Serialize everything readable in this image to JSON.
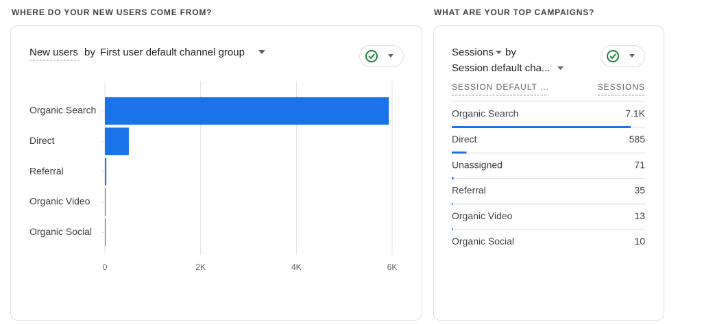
{
  "left_card": {
    "heading": "WHERE DO YOUR NEW USERS COME FROM?",
    "metric": "New users",
    "by": "by",
    "dimension": "First user default channel group"
  },
  "chart_data": {
    "type": "bar",
    "orientation": "horizontal",
    "categories": [
      "Organic Search",
      "Direct",
      "Referral",
      "Organic Video",
      "Organic Social"
    ],
    "values": [
      5930,
      500,
      30,
      8,
      5
    ],
    "color": "#1a73e8",
    "xlim": [
      0,
      6000
    ],
    "xticks": [
      0,
      {
        "value": 2000,
        "label": "2K"
      },
      {
        "value": 4000,
        "label": "4K"
      },
      {
        "value": 6000,
        "label": "6K"
      }
    ],
    "grid": true
  },
  "right_card": {
    "heading": "WHAT ARE YOUR TOP CAMPAIGNS?",
    "metric": "Sessions",
    "by": "by",
    "dimension": "Session default cha...",
    "table": {
      "columns": [
        "SESSION DEFAULT ...",
        "SESSIONS"
      ],
      "rows": [
        "Organic Search",
        "Direct",
        "Unassigned",
        "Referral",
        "Organic Video",
        "Organic Social"
      ],
      "values": [
        7100,
        585,
        71,
        35,
        13,
        10
      ],
      "value_labels": [
        "7.1K",
        "585",
        "71",
        "35",
        "13",
        "10"
      ],
      "bar_color": "#1a73e8"
    }
  }
}
